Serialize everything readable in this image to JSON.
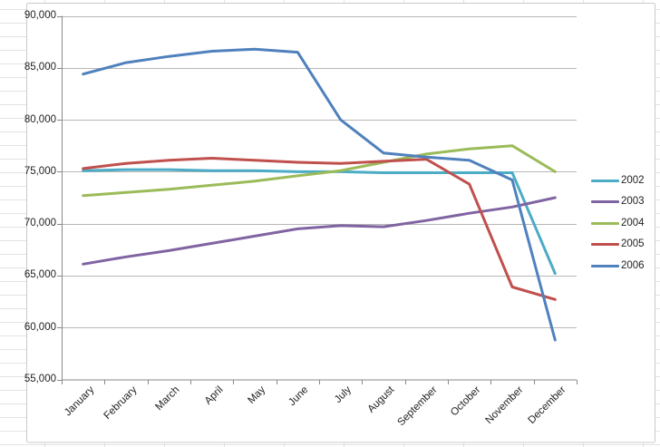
{
  "chart_data": {
    "type": "line",
    "title": "",
    "categories": [
      "January",
      "February",
      "March",
      "April",
      "May",
      "June",
      "July",
      "August",
      "September",
      "October",
      "November",
      "December"
    ],
    "series": [
      {
        "name": "2002",
        "color": "#4BACC6",
        "values": [
          75100,
          75200,
          75200,
          75100,
          75100,
          75000,
          75000,
          74900,
          74900,
          74900,
          74900,
          65200
        ]
      },
      {
        "name": "2003",
        "color": "#8064A2",
        "values": [
          66100,
          66800,
          67400,
          68100,
          68800,
          69500,
          69800,
          69700,
          70300,
          71000,
          71600,
          72500
        ]
      },
      {
        "name": "2004",
        "color": "#9BBB59",
        "values": [
          72700,
          73000,
          73300,
          73700,
          74100,
          74600,
          75100,
          75900,
          76700,
          77200,
          77500,
          75000
        ]
      },
      {
        "name": "2005",
        "color": "#C0504D",
        "values": [
          75300,
          75800,
          76100,
          76300,
          76100,
          75900,
          75800,
          76000,
          76200,
          73800,
          63900,
          62700
        ]
      },
      {
        "name": "2006",
        "color": "#4F81BD",
        "values": [
          84400,
          85500,
          86100,
          86600,
          86800,
          86500,
          80000,
          76800,
          76400,
          76100,
          74200,
          58800
        ]
      }
    ],
    "y_axis": {
      "min": 55000,
      "max": 90000,
      "step": 5000,
      "tick_labels": [
        "90,000",
        "85,000",
        "80,000",
        "75,000",
        "70,000",
        "65,000",
        "60,000",
        "55,000"
      ]
    },
    "grid": "horizontal",
    "legend_position": "right"
  },
  "colors": {
    "gridline": "#B7B7B7",
    "axis": "#898989",
    "tick": "#898989",
    "worksheet_grid": "#E3E3E3",
    "chart_border": "#C9C9C9",
    "chart_fill": "#FFFFFF",
    "label_text": "#222222"
  }
}
